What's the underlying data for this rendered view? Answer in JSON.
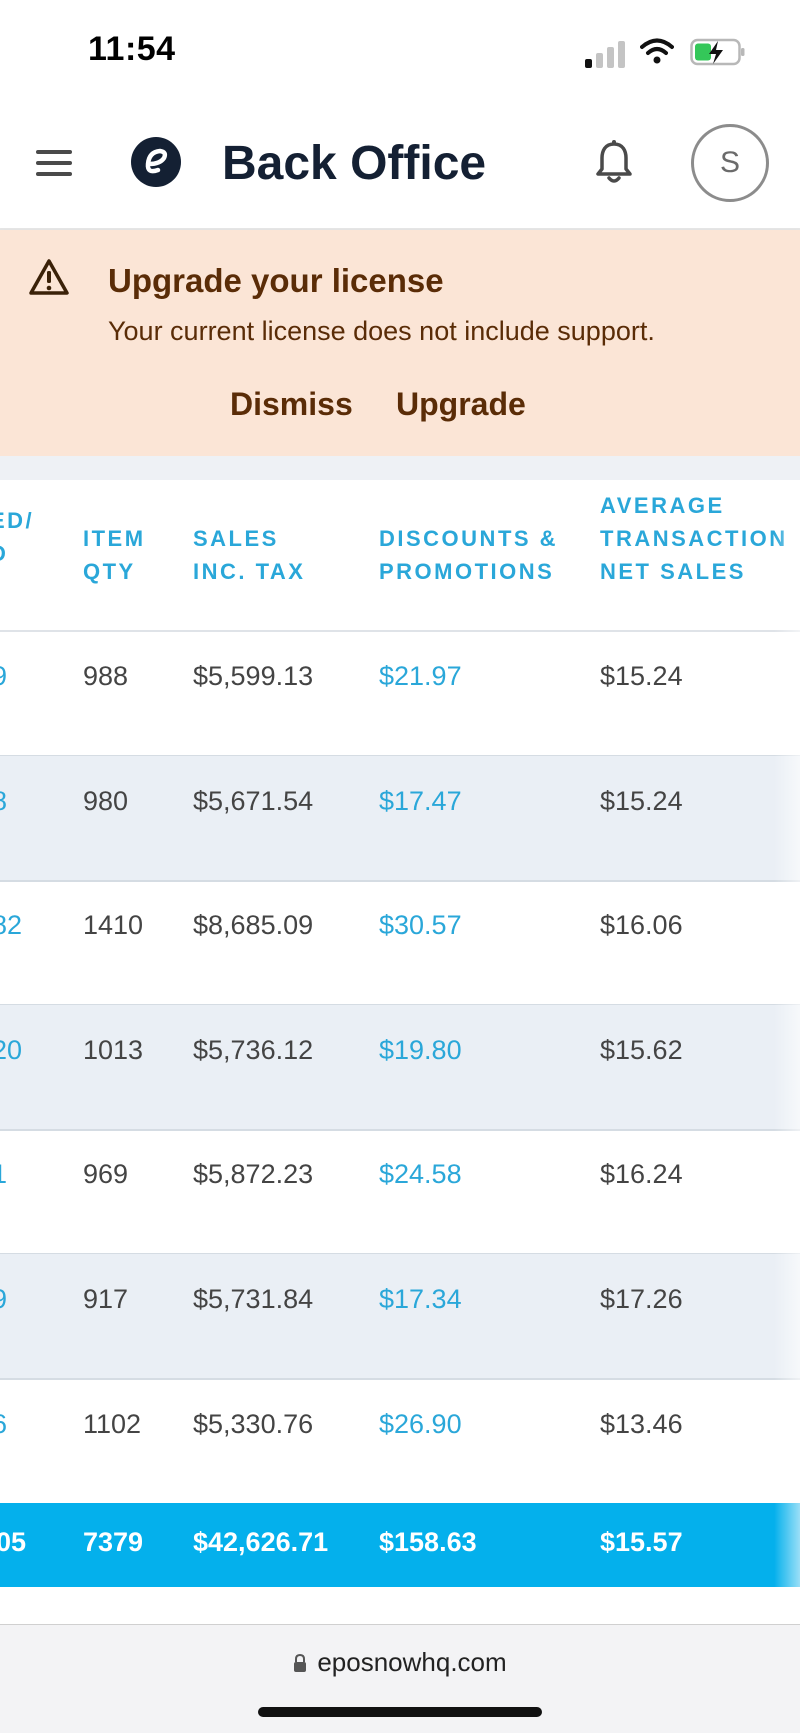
{
  "status_bar": {
    "time": "11:54"
  },
  "header": {
    "title": "Back Office",
    "avatar_initial": "S"
  },
  "banner": {
    "title": "Upgrade your license",
    "message": "Your current license does not include support.",
    "dismiss_label": "Dismiss",
    "upgrade_label": "Upgrade"
  },
  "table": {
    "columns": [
      {
        "lines": [
          "ED/",
          "D"
        ]
      },
      {
        "lines": [
          "ITEM",
          "QTY"
        ]
      },
      {
        "lines": [
          "SALES",
          "INC. TAX"
        ]
      },
      {
        "lines": [
          "DISCOUNTS &",
          "PROMOTIONS"
        ]
      },
      {
        "lines": [
          "AVERAGE",
          "TRANSACTION",
          "NET SALES"
        ]
      }
    ],
    "rows": [
      [
        "9",
        "988",
        "$5,599.13",
        "$21.97",
        "$15.24"
      ],
      [
        "8",
        "980",
        "$5,671.54",
        "$17.47",
        "$15.24"
      ],
      [
        "82",
        "1410",
        "$8,685.09",
        "$30.57",
        "$16.06"
      ],
      [
        "20",
        "1013",
        "$5,736.12",
        "$19.80",
        "$15.62"
      ],
      [
        "1",
        "969",
        "$5,872.23",
        "$24.58",
        "$16.24"
      ],
      [
        "9",
        "917",
        "$5,731.84",
        "$17.34",
        "$17.26"
      ],
      [
        "6",
        "1102",
        "$5,330.76",
        "$26.90",
        "$13.46"
      ]
    ],
    "total": [
      "05",
      "7379",
      "$42,626.71",
      "$158.63",
      "$15.57"
    ]
  },
  "browser": {
    "url": "eposnowhq.com"
  },
  "colors": {
    "accent": "#2aa7d9",
    "total_row": "#04b0ec",
    "banner_bg": "#fbe5d6",
    "banner_text": "#5a2c07"
  }
}
